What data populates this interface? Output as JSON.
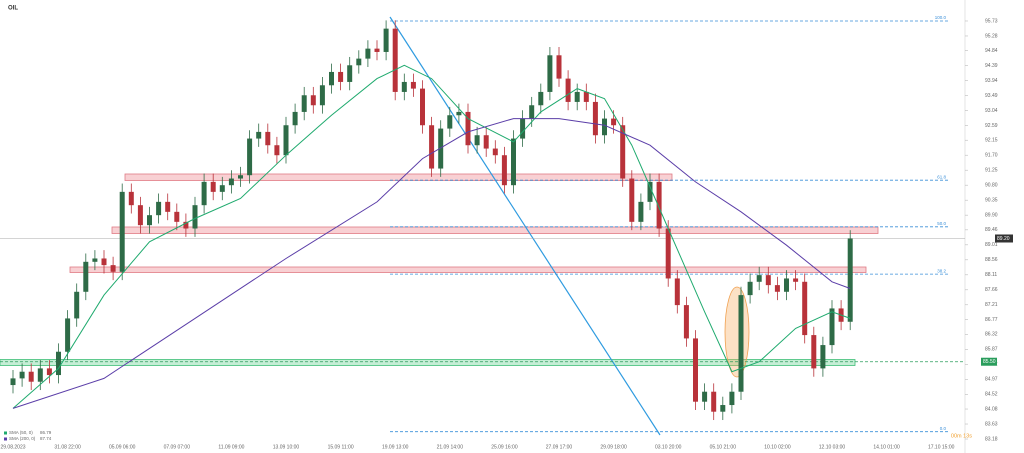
{
  "chart_data": {
    "type": "candlestick",
    "title": "OIL",
    "timer": "00m 13s",
    "categories": [
      "29.08.2023",
      null,
      null,
      null,
      null,
      null,
      "31.08 22:00",
      null,
      null,
      null,
      null,
      null,
      "05.09 06:00",
      null,
      null,
      null,
      null,
      null,
      "07.09 07:00",
      null,
      null,
      null,
      null,
      null,
      "11.09 09:00",
      null,
      null,
      null,
      null,
      null,
      "13.09 10:00",
      null,
      null,
      null,
      null,
      null,
      "15.09 11:00",
      null,
      null,
      null,
      null,
      null,
      "19.09 13:00",
      null,
      null,
      null,
      null,
      null,
      "21.09 14:00",
      null,
      null,
      null,
      null,
      null,
      "25.09 16:00",
      null,
      null,
      null,
      null,
      null,
      "27.09 17:00",
      null,
      null,
      null,
      null,
      null,
      "29.09 18:00",
      null,
      null,
      null,
      null,
      null,
      "03.10 20:00",
      null,
      null,
      null,
      null,
      null,
      "05.10 21:00",
      null,
      null,
      null,
      null,
      null,
      "10.10 02:00",
      null,
      null,
      null,
      null,
      null,
      "12.10 03:00",
      null,
      null,
      null,
      null,
      null,
      "14.10 01:00",
      null,
      null,
      null,
      null,
      null,
      "17.10 15:00"
    ],
    "open": [
      84.8,
      85.0,
      85.2,
      84.9,
      85.3,
      85.1,
      85.8,
      86.8,
      87.6,
      88.5,
      88.6,
      88.4,
      88.2,
      90.6,
      90.2,
      89.6,
      89.9,
      90.3,
      90.0,
      89.7,
      89.5,
      90.2,
      90.9,
      90.6,
      90.8,
      91.0,
      91.1,
      92.2,
      92.4,
      92.0,
      91.7,
      92.6,
      93.0,
      93.5,
      93.2,
      93.8,
      94.2,
      93.9,
      94.4,
      94.6,
      94.9,
      94.8,
      95.5,
      93.6,
      93.9,
      93.7,
      92.6,
      91.3,
      92.5,
      92.9,
      93.0,
      92.0,
      92.3,
      91.9,
      91.7,
      90.8,
      92.2,
      92.8,
      93.2,
      93.6,
      94.7,
      94.0,
      93.3,
      93.6,
      93.3,
      92.3,
      92.8,
      92.6,
      91.0,
      89.7,
      90.3,
      90.9,
      89.5,
      88.0,
      87.2,
      86.2,
      84.3,
      84.6,
      84.0,
      84.2,
      84.6,
      87.5,
      87.9,
      88.1,
      87.8,
      87.6,
      88.0,
      87.9,
      86.3,
      85.3,
      86.0,
      87.1,
      86.7,
      null,
      null,
      null,
      null,
      null,
      null,
      null,
      null,
      null,
      null
    ],
    "high": [
      85.25,
      85.45,
      85.45,
      85.55,
      85.55,
      86.05,
      87.05,
      87.85,
      88.75,
      88.85,
      88.85,
      88.65,
      90.85,
      90.85,
      90.45,
      90.15,
      90.55,
      90.55,
      90.25,
      89.95,
      90.45,
      91.15,
      91.15,
      91.05,
      91.25,
      91.35,
      92.45,
      92.65,
      92.65,
      92.25,
      92.85,
      93.25,
      93.75,
      93.75,
      94.05,
      94.45,
      94.45,
      94.65,
      94.85,
      95.15,
      95.15,
      95.75,
      95.75,
      94.15,
      94.15,
      93.95,
      92.85,
      92.75,
      93.15,
      93.25,
      93.25,
      92.55,
      92.55,
      92.15,
      91.95,
      92.45,
      93.05,
      93.45,
      93.85,
      94.95,
      94.95,
      94.25,
      93.85,
      93.85,
      93.55,
      93.05,
      93.05,
      92.85,
      91.25,
      90.55,
      91.15,
      91.15,
      89.75,
      88.25,
      87.45,
      86.45,
      84.85,
      84.85,
      84.45,
      84.85,
      87.75,
      88.15,
      88.35,
      88.35,
      88.05,
      88.25,
      88.25,
      88.15,
      86.55,
      86.25,
      87.35,
      87.35,
      89.45,
      null,
      null,
      null,
      null,
      null,
      null,
      null,
      null,
      null,
      null
    ],
    "low": [
      84.55,
      84.75,
      84.65,
      84.65,
      84.85,
      84.85,
      85.55,
      86.55,
      87.35,
      88.25,
      88.15,
      87.95,
      87.95,
      89.95,
      89.35,
      89.35,
      89.65,
      89.75,
      89.45,
      89.25,
      89.25,
      89.95,
      90.35,
      90.35,
      90.55,
      90.75,
      90.85,
      91.95,
      91.75,
      91.45,
      91.45,
      92.35,
      92.75,
      92.95,
      92.95,
      93.55,
      93.65,
      93.65,
      94.15,
      94.35,
      94.55,
      94.55,
      93.35,
      93.35,
      93.45,
      92.35,
      91.05,
      91.05,
      92.25,
      92.65,
      91.75,
      91.75,
      91.65,
      91.45,
      90.55,
      90.55,
      91.95,
      92.55,
      92.95,
      93.35,
      93.75,
      93.05,
      93.05,
      93.05,
      92.05,
      92.05,
      92.35,
      90.75,
      89.45,
      89.45,
      90.05,
      89.25,
      87.75,
      86.95,
      85.95,
      84.05,
      84.05,
      83.75,
      83.75,
      83.95,
      84.35,
      87.25,
      87.65,
      87.55,
      87.35,
      87.35,
      87.65,
      86.05,
      85.05,
      85.05,
      85.75,
      86.45,
      86.45,
      null,
      null,
      null,
      null,
      null,
      null,
      null,
      null,
      null,
      null
    ],
    "close": [
      85.0,
      85.2,
      84.9,
      85.3,
      85.1,
      85.8,
      86.8,
      87.6,
      88.5,
      88.6,
      88.4,
      88.2,
      90.6,
      90.2,
      89.6,
      89.9,
      90.3,
      90.0,
      89.7,
      89.5,
      90.2,
      90.9,
      90.6,
      90.8,
      91.0,
      91.1,
      92.2,
      92.4,
      92.0,
      91.7,
      92.6,
      93.0,
      93.5,
      93.2,
      93.8,
      94.2,
      93.9,
      94.4,
      94.6,
      94.9,
      94.8,
      95.5,
      93.6,
      93.9,
      93.7,
      92.6,
      91.3,
      92.5,
      92.9,
      93.0,
      92.0,
      92.3,
      91.9,
      91.7,
      90.8,
      92.2,
      92.8,
      93.2,
      93.6,
      94.7,
      94.0,
      93.3,
      93.6,
      93.3,
      92.3,
      92.8,
      92.6,
      91.0,
      89.7,
      90.3,
      90.9,
      89.5,
      88.0,
      87.2,
      86.2,
      84.3,
      84.6,
      84.0,
      84.2,
      84.6,
      87.5,
      87.9,
      88.1,
      87.8,
      87.6,
      88.0,
      87.9,
      86.3,
      85.3,
      86.0,
      87.1,
      86.7,
      89.2,
      null,
      null,
      null,
      null,
      null,
      null,
      null,
      null,
      null,
      null
    ],
    "up_color": "#2e6b47",
    "down_color": "#b8323a",
    "series": [
      {
        "name": "SMA (50, 0)",
        "legend_value": 86.79,
        "color": "#1faa6e",
        "x": [
          0,
          5,
          10,
          15,
          20,
          25,
          30,
          35,
          40,
          43,
          46,
          50,
          55,
          58,
          62,
          65,
          68,
          72,
          76,
          79,
          82,
          86,
          90,
          92
        ],
        "values": [
          84.1,
          85.3,
          87.5,
          89.1,
          89.8,
          90.4,
          91.7,
          92.9,
          94.0,
          94.4,
          94.0,
          92.8,
          92.1,
          93.0,
          93.7,
          93.4,
          92.0,
          89.5,
          87.0,
          85.2,
          85.5,
          86.5,
          87.0,
          86.8
        ]
      },
      {
        "name": "SMA (200, 0)",
        "legend_value": 87.74,
        "color": "#5b3ea8",
        "x": [
          0,
          10,
          20,
          30,
          40,
          45,
          50,
          55,
          60,
          65,
          70,
          75,
          80,
          85,
          90,
          92
        ],
        "values": [
          84.1,
          85.0,
          86.8,
          88.6,
          90.3,
          91.6,
          92.4,
          92.8,
          92.8,
          92.6,
          92.0,
          90.9,
          90.0,
          89.0,
          87.9,
          87.7
        ]
      }
    ],
    "fib_levels": [
      {
        "label": "100.0",
        "value": 95.73
      },
      {
        "label": "61.8",
        "value": 90.95
      },
      {
        "label": "50.0",
        "value": 89.55
      },
      {
        "label": "38.2",
        "value": 88.13
      },
      {
        "label": "0.0",
        "value": 83.4
      }
    ],
    "current_price": {
      "value": 89.2,
      "label": "89.20"
    },
    "level_marker": {
      "value": 85.5,
      "label": "85.50"
    },
    "ylim": [
      82.76,
      96.36
    ],
    "yticks": [
      95.73,
      95.28,
      94.84,
      94.39,
      93.94,
      93.49,
      93.04,
      92.59,
      92.15,
      {
        "value": 91.7,
        "label": "91.70"
      },
      91.25,
      {
        "value": 90.8,
        "label": "90.80"
      },
      90.35,
      {
        "value": 89.9,
        "label": "89.90"
      },
      89.46,
      89.01,
      88.56,
      88.11,
      87.66,
      87.21,
      86.77,
      86.32,
      85.87,
      85.42,
      84.97,
      84.52,
      84.08,
      83.63,
      83.18
    ]
  }
}
